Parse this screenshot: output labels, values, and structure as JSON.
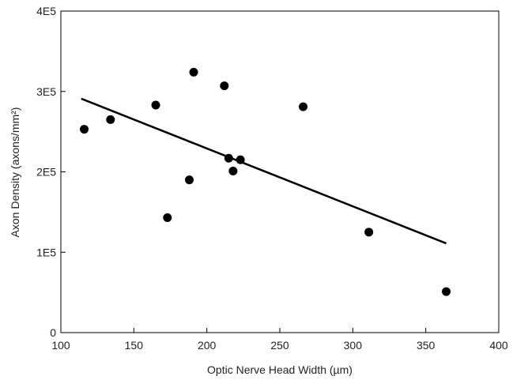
{
  "chart_data": {
    "type": "scatter",
    "xlabel": "Optic Nerve Head Width (µm)",
    "ylabel": "Axon Density (axons/mm²)",
    "xlim": [
      100,
      400
    ],
    "ylim": [
      0,
      400000
    ],
    "x_ticks": [
      100,
      150,
      200,
      250,
      300,
      350,
      400
    ],
    "x_tick_labels": [
      "100",
      "150",
      "200",
      "250",
      "300",
      "350",
      "400"
    ],
    "y_ticks": [
      0,
      100000,
      200000,
      300000,
      400000
    ],
    "y_tick_labels": [
      "0",
      "1E5",
      "2E5",
      "3E5",
      "4E5"
    ],
    "grid": false,
    "points": [
      {
        "x": 116,
        "y": 253000
      },
      {
        "x": 134,
        "y": 265000
      },
      {
        "x": 165,
        "y": 283000
      },
      {
        "x": 173,
        "y": 143000
      },
      {
        "x": 188,
        "y": 190000
      },
      {
        "x": 191,
        "y": 324000
      },
      {
        "x": 212,
        "y": 307000
      },
      {
        "x": 215,
        "y": 217000
      },
      {
        "x": 218,
        "y": 201000
      },
      {
        "x": 223,
        "y": 215000
      },
      {
        "x": 266,
        "y": 281000
      },
      {
        "x": 311,
        "y": 125000
      },
      {
        "x": 364,
        "y": 51000
      }
    ],
    "fit_line": {
      "x": [
        114,
        364
      ],
      "y": [
        291000,
        111000
      ]
    },
    "colors": {
      "points": "#000000",
      "line": "#000000",
      "axes": "#000000"
    }
  }
}
